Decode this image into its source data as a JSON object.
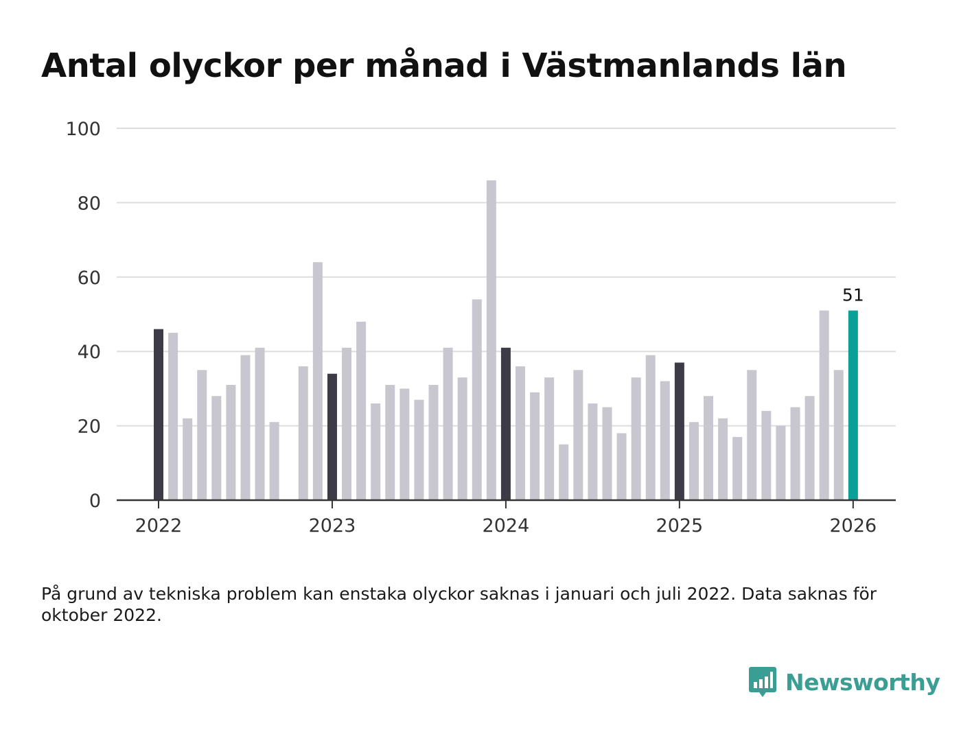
{
  "title": "Antal olyckor per månad i Västmanlands län",
  "footnote": "På grund av tekniska problem kan enstaka olyckor saknas i januari och juli 2022. Data saknas för oktober 2022.",
  "brand": {
    "name": "Newsworthy",
    "icon": "bar-chart-speech-bubble-icon"
  },
  "colors": {
    "bar_default": "#c8c7cf",
    "bar_january": "#3d3c46",
    "bar_latest": "#0aa097",
    "gridline": "#dddddd",
    "axis": "#333333",
    "brand": "#3a9e94"
  },
  "chart_data": {
    "type": "bar",
    "title": "Antal olyckor per månad i Västmanlands län",
    "xlabel": "",
    "ylabel": "",
    "ylim": [
      0,
      100
    ],
    "yticks": [
      "0",
      "20",
      "40",
      "60",
      "80",
      "100"
    ],
    "xticks": [
      {
        "label": "2022",
        "index": 0
      },
      {
        "label": "2023",
        "index": 12
      },
      {
        "label": "2024",
        "index": 24
      },
      {
        "label": "2025",
        "index": 36
      },
      {
        "label": "2026",
        "index": 48
      }
    ],
    "highlight_label": "51",
    "months": [
      "2022-01",
      "2022-02",
      "2022-03",
      "2022-04",
      "2022-05",
      "2022-06",
      "2022-07",
      "2022-08",
      "2022-09",
      "2022-10",
      "2022-11",
      "2022-12",
      "2023-01",
      "2023-02",
      "2023-03",
      "2023-04",
      "2023-05",
      "2023-06",
      "2023-07",
      "2023-08",
      "2023-09",
      "2023-10",
      "2023-11",
      "2023-12",
      "2024-01",
      "2024-02",
      "2024-03",
      "2024-04",
      "2024-05",
      "2024-06",
      "2024-07",
      "2024-08",
      "2024-09",
      "2024-10",
      "2024-11",
      "2024-12",
      "2025-01",
      "2025-02",
      "2025-03",
      "2025-04",
      "2025-05",
      "2025-06",
      "2025-07",
      "2025-08",
      "2025-09",
      "2025-10",
      "2025-11",
      "2025-12",
      "2026-01"
    ],
    "values": [
      46,
      45,
      22,
      35,
      28,
      31,
      39,
      41,
      21,
      null,
      36,
      64,
      34,
      41,
      48,
      26,
      31,
      30,
      27,
      31,
      41,
      33,
      54,
      86,
      41,
      36,
      29,
      33,
      15,
      35,
      26,
      25,
      18,
      33,
      39,
      32,
      37,
      21,
      28,
      22,
      17,
      35,
      24,
      20,
      25,
      28,
      51,
      35,
      51
    ]
  }
}
